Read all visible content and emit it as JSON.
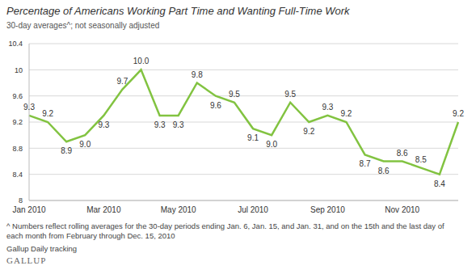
{
  "chart_data": {
    "type": "line",
    "title": "Percentage of Americans Working Part Time and Wanting Full-Time Work",
    "subtitle": "30-day averages^; not seasonally adjusted",
    "footnote": "^ Numbers reflect rolling averages for the 30-day periods ending Jan. 6, Jan. 15, and Jan. 31, and on the 15th and the last day of each month from February through Dec. 15, 2010",
    "source": "Gallup Daily tracking",
    "logo": "GALLUP",
    "categories": [
      "Jan 2010",
      null,
      null,
      null,
      "Mar 2010",
      null,
      null,
      null,
      "May 2010",
      null,
      null,
      null,
      "Jul 2010",
      null,
      null,
      null,
      "Sep 2010",
      null,
      null,
      null,
      "Nov 2010",
      null,
      null,
      null
    ],
    "values": [
      9.3,
      9.2,
      8.9,
      9.0,
      9.3,
      9.7,
      10.0,
      9.3,
      9.3,
      9.8,
      9.6,
      9.5,
      9.1,
      9.0,
      9.5,
      9.2,
      9.3,
      9.2,
      8.7,
      8.6,
      8.6,
      8.5,
      8.4,
      9.2
    ],
    "value_labels": [
      "9.3",
      "9.2",
      "8.9",
      "9.0",
      "9.3",
      "9.7",
      "10.0",
      "9.3",
      "9.3",
      "9.8",
      "9.6",
      "9.5",
      "9.1",
      "9.0",
      "9.5",
      "9.2",
      "9.3",
      "9.2",
      "8.7",
      "8.6",
      "8.6",
      "8.5",
      "8.4",
      "9.2"
    ],
    "data_labels": true,
    "color": "#82c341",
    "ylim": [
      8,
      10.4
    ],
    "yticks": [
      8,
      8.4,
      8.8,
      9.2,
      9.6,
      10,
      10.4
    ],
    "grid": true
  }
}
